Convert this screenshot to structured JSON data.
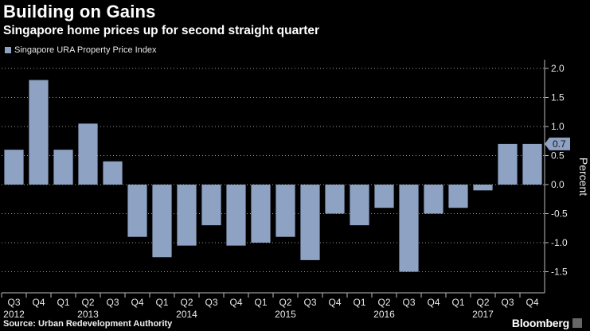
{
  "header": {
    "title": "Building on Gains",
    "subtitle": "Singapore home prices up for second straight quarter"
  },
  "footer": {
    "source": "Source: Urban Redevelopment Authority",
    "brand": "Bloomberg"
  },
  "chart_data": {
    "type": "bar",
    "title": "Building on Gains",
    "subtitle": "Singapore home prices up for second straight quarter",
    "ylabel": "Percent",
    "xlabel": "",
    "ylim": [
      -1.7,
      2.2
    ],
    "yticks": [
      2.0,
      1.5,
      1.0,
      0.5,
      0.0,
      -0.5,
      -1.0,
      -1.5
    ],
    "ytick_labels": [
      "2.0",
      "1.5",
      "1.0",
      "0.5",
      "0.0",
      "-0.5",
      "-1.0",
      "-1.5"
    ],
    "gridlines": "horizontal-dotted",
    "series": [
      {
        "name": "Singapore URA Property Price Index",
        "color": "#8ea3c4",
        "values": [
          0.6,
          1.8,
          0.6,
          1.05,
          0.4,
          -0.9,
          -1.25,
          -1.05,
          -0.7,
          -1.05,
          -1.0,
          -0.9,
          -1.3,
          -0.5,
          -0.7,
          -0.4,
          -1.5,
          -0.5,
          -0.4,
          -0.1,
          0.7,
          0.7
        ]
      }
    ],
    "categories": [
      "Q3 2012",
      "Q4 2012",
      "Q1 2013",
      "Q2 2013",
      "Q3 2013",
      "Q4 2013",
      "Q1 2014",
      "Q2 2014",
      "Q3 2014",
      "Q4 2014",
      "Q1 2015",
      "Q2 2015",
      "Q3 2015",
      "Q4 2015",
      "Q1 2016",
      "Q2 2016",
      "Q3 2016",
      "Q4 2016",
      "Q1 2017",
      "Q2 2017",
      "Q3 2017",
      "Q4 2017"
    ],
    "quarter_labels": [
      "Q3",
      "Q4",
      "Q1",
      "Q2",
      "Q3",
      "Q4",
      "Q1",
      "Q2",
      "Q3",
      "Q4",
      "Q1",
      "Q2",
      "Q3",
      "Q4",
      "Q1",
      "Q2",
      "Q3",
      "Q4",
      "Q1",
      "Q2",
      "Q3",
      "Q4"
    ],
    "year_labels": [
      {
        "label": "2012",
        "index": 0
      },
      {
        "label": "2013",
        "index": 3
      },
      {
        "label": "2014",
        "index": 7
      },
      {
        "label": "2015",
        "index": 11
      },
      {
        "label": "2016",
        "index": 15
      },
      {
        "label": "2017",
        "index": 19
      }
    ],
    "annotation": {
      "label": "0.7",
      "value": 0.7
    }
  }
}
